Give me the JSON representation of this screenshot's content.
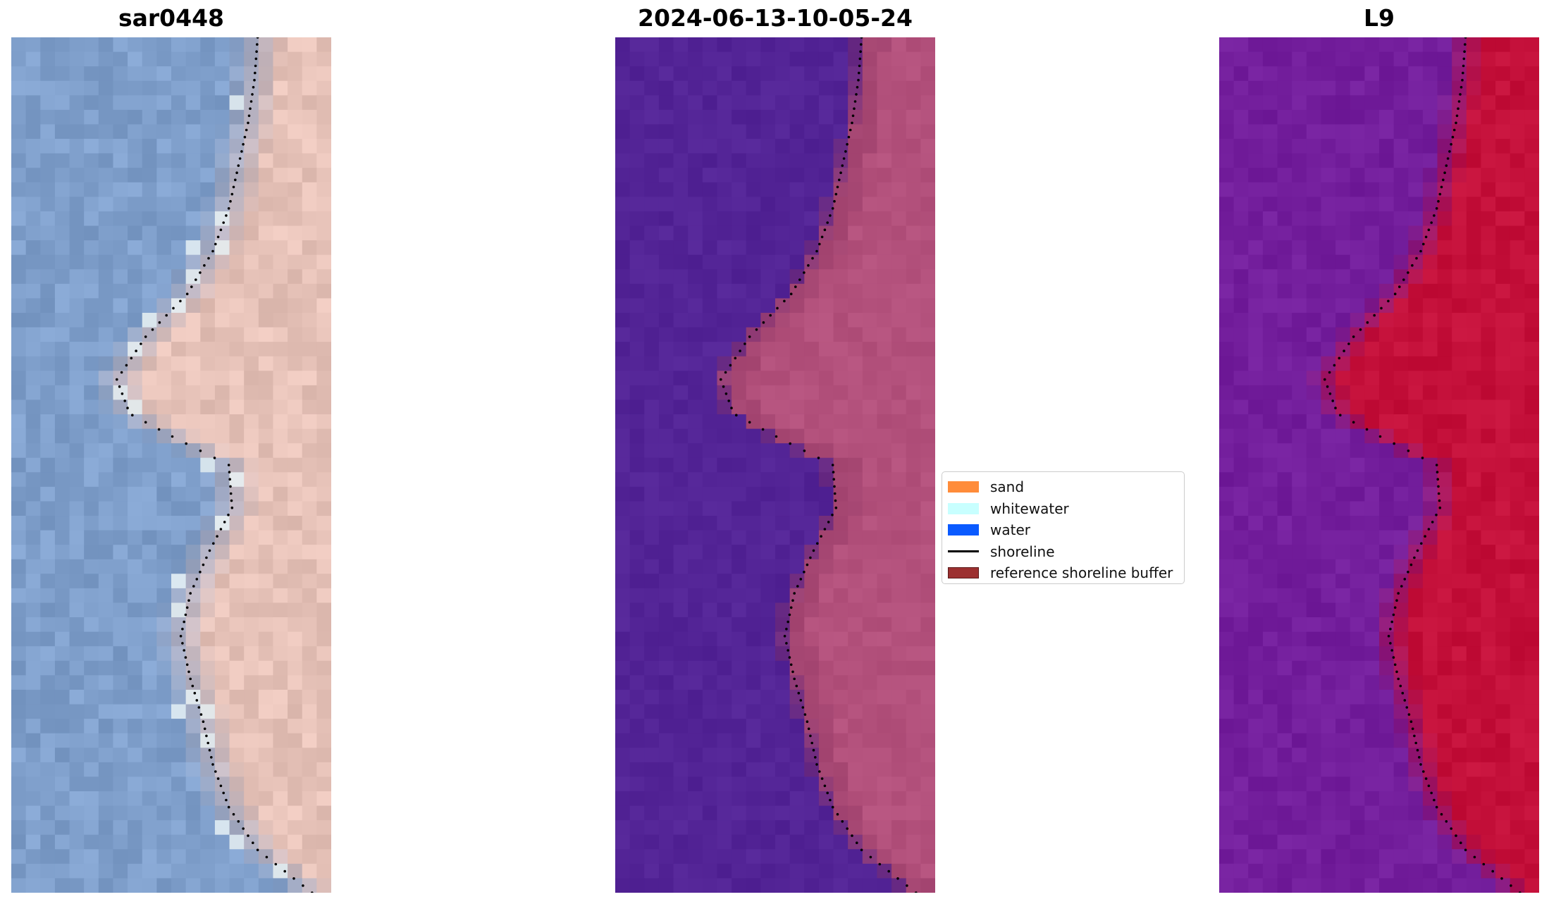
{
  "panels": [
    {
      "id": "rgb",
      "title": "sar0448"
    },
    {
      "id": "classified",
      "title": "2024-06-13-10-05-24"
    },
    {
      "id": "index",
      "title": "L9"
    }
  ],
  "legend": {
    "items": [
      {
        "label": "sand",
        "color": "#ff8c3a",
        "kind": "patch"
      },
      {
        "label": "whitewater",
        "color": "#c8ffff",
        "kind": "patch"
      },
      {
        "label": "water",
        "color": "#0a5aff",
        "kind": "patch"
      },
      {
        "label": "shoreline",
        "color": "#000000",
        "kind": "line"
      },
      {
        "label": "reference shoreline buffer",
        "color": "#9c3030",
        "kind": "patch"
      }
    ]
  },
  "colors": {
    "rgb_water": "#7f9fcb",
    "rgb_land": "#e6c2b8",
    "classified_water": "#532496",
    "classified_land": "#b3517c",
    "index_water": "#731e9c",
    "index_land": "#c4103a"
  },
  "shoreline": [
    [
      0.77,
      0.0
    ],
    [
      0.76,
      0.05
    ],
    [
      0.74,
      0.1
    ],
    [
      0.71,
      0.15
    ],
    [
      0.68,
      0.2
    ],
    [
      0.63,
      0.25
    ],
    [
      0.55,
      0.3
    ],
    [
      0.42,
      0.35
    ],
    [
      0.33,
      0.4
    ],
    [
      0.37,
      0.44
    ],
    [
      0.52,
      0.47
    ],
    [
      0.68,
      0.5
    ],
    [
      0.69,
      0.55
    ],
    [
      0.62,
      0.6
    ],
    [
      0.56,
      0.65
    ],
    [
      0.53,
      0.7
    ],
    [
      0.56,
      0.75
    ],
    [
      0.6,
      0.8
    ],
    [
      0.63,
      0.85
    ],
    [
      0.68,
      0.9
    ],
    [
      0.77,
      0.95
    ],
    [
      0.94,
      1.0
    ]
  ]
}
